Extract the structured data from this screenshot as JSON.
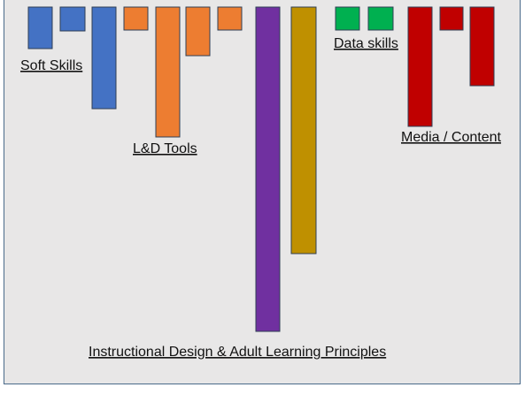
{
  "chart_data": {
    "type": "bar",
    "orientation": "downward",
    "title": "",
    "xlabel": "",
    "ylabel": "",
    "axes_visible": false,
    "grid": false,
    "ylim": [
      0,
      380
    ],
    "groups": [
      {
        "label": "Soft Skills",
        "color": "#4472c4",
        "values": [
          47,
          27,
          115
        ]
      },
      {
        "label": "L&D Tools",
        "color": "#ed7d31",
        "values": [
          26,
          147,
          55,
          26
        ]
      },
      {
        "label": "Instructional Design & Adult Learning Principles",
        "color": "#7030a0",
        "values": [
          367
        ]
      },
      {
        "label": "",
        "color": "#bf9000",
        "values": [
          279
        ]
      },
      {
        "label": "Data skills",
        "color": "#00b050",
        "values": [
          26,
          26
        ]
      },
      {
        "label": "Media / Content",
        "color": "#c00000",
        "values": [
          135,
          26,
          89
        ]
      }
    ]
  }
}
